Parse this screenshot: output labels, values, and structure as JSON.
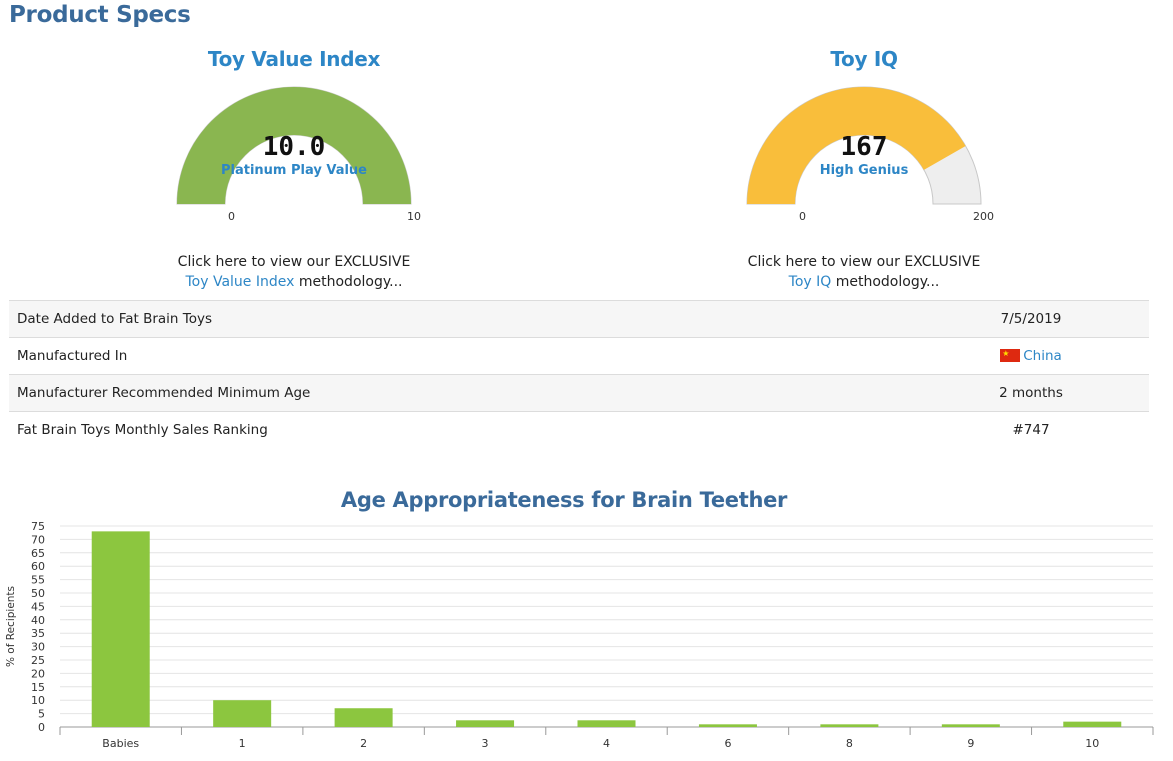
{
  "page": {
    "title": "Product Specs"
  },
  "gauges": [
    {
      "title": "Toy Value Index",
      "value": "10.0",
      "fraction": 1.0,
      "label": "Platinum Play Value",
      "min": "0",
      "max": "10",
      "fill_color": "#8ab650",
      "track_color": "#eeeeee",
      "note_line1": "Click here to view our EXCLUSIVE",
      "note_link": "Toy Value Index",
      "note_suffix": " methodology..."
    },
    {
      "title": "Toy IQ",
      "value": "167",
      "fraction": 0.835,
      "label": "High Genius",
      "min": "0",
      "max": "200",
      "fill_color": "#f9be3b",
      "track_color": "#eeeeee",
      "note_line1": "Click here to view our EXCLUSIVE",
      "note_link": "Toy IQ",
      "note_suffix": " methodology..."
    }
  ],
  "specs": [
    {
      "label": "Date Added to Fat Brain Toys",
      "value": "7/5/2019"
    },
    {
      "label": "Manufactured In",
      "value": "China",
      "flag": "china-flag-icon"
    },
    {
      "label": "Manufacturer Recommended Minimum Age",
      "value": "2 months"
    },
    {
      "label": "Fat Brain Toys Monthly Sales Ranking",
      "value": "#747"
    }
  ],
  "chart_data": {
    "type": "bar",
    "title": "Age Appropriateness for Brain Teether",
    "ylabel": "% of Recipients",
    "xlabel": "",
    "categories": [
      "Babies",
      "1",
      "2",
      "3",
      "4",
      "6",
      "8",
      "9",
      "10"
    ],
    "values": [
      73,
      10,
      7,
      2.5,
      2.5,
      1,
      1,
      1,
      2
    ],
    "ylim": [
      0,
      75
    ],
    "yticks": [
      "0",
      "5",
      "10",
      "15",
      "20",
      "25",
      "30",
      "35",
      "40",
      "45",
      "50",
      "55",
      "60",
      "65",
      "70",
      "75"
    ],
    "grid": true,
    "bar_color": "#8cc63f"
  }
}
